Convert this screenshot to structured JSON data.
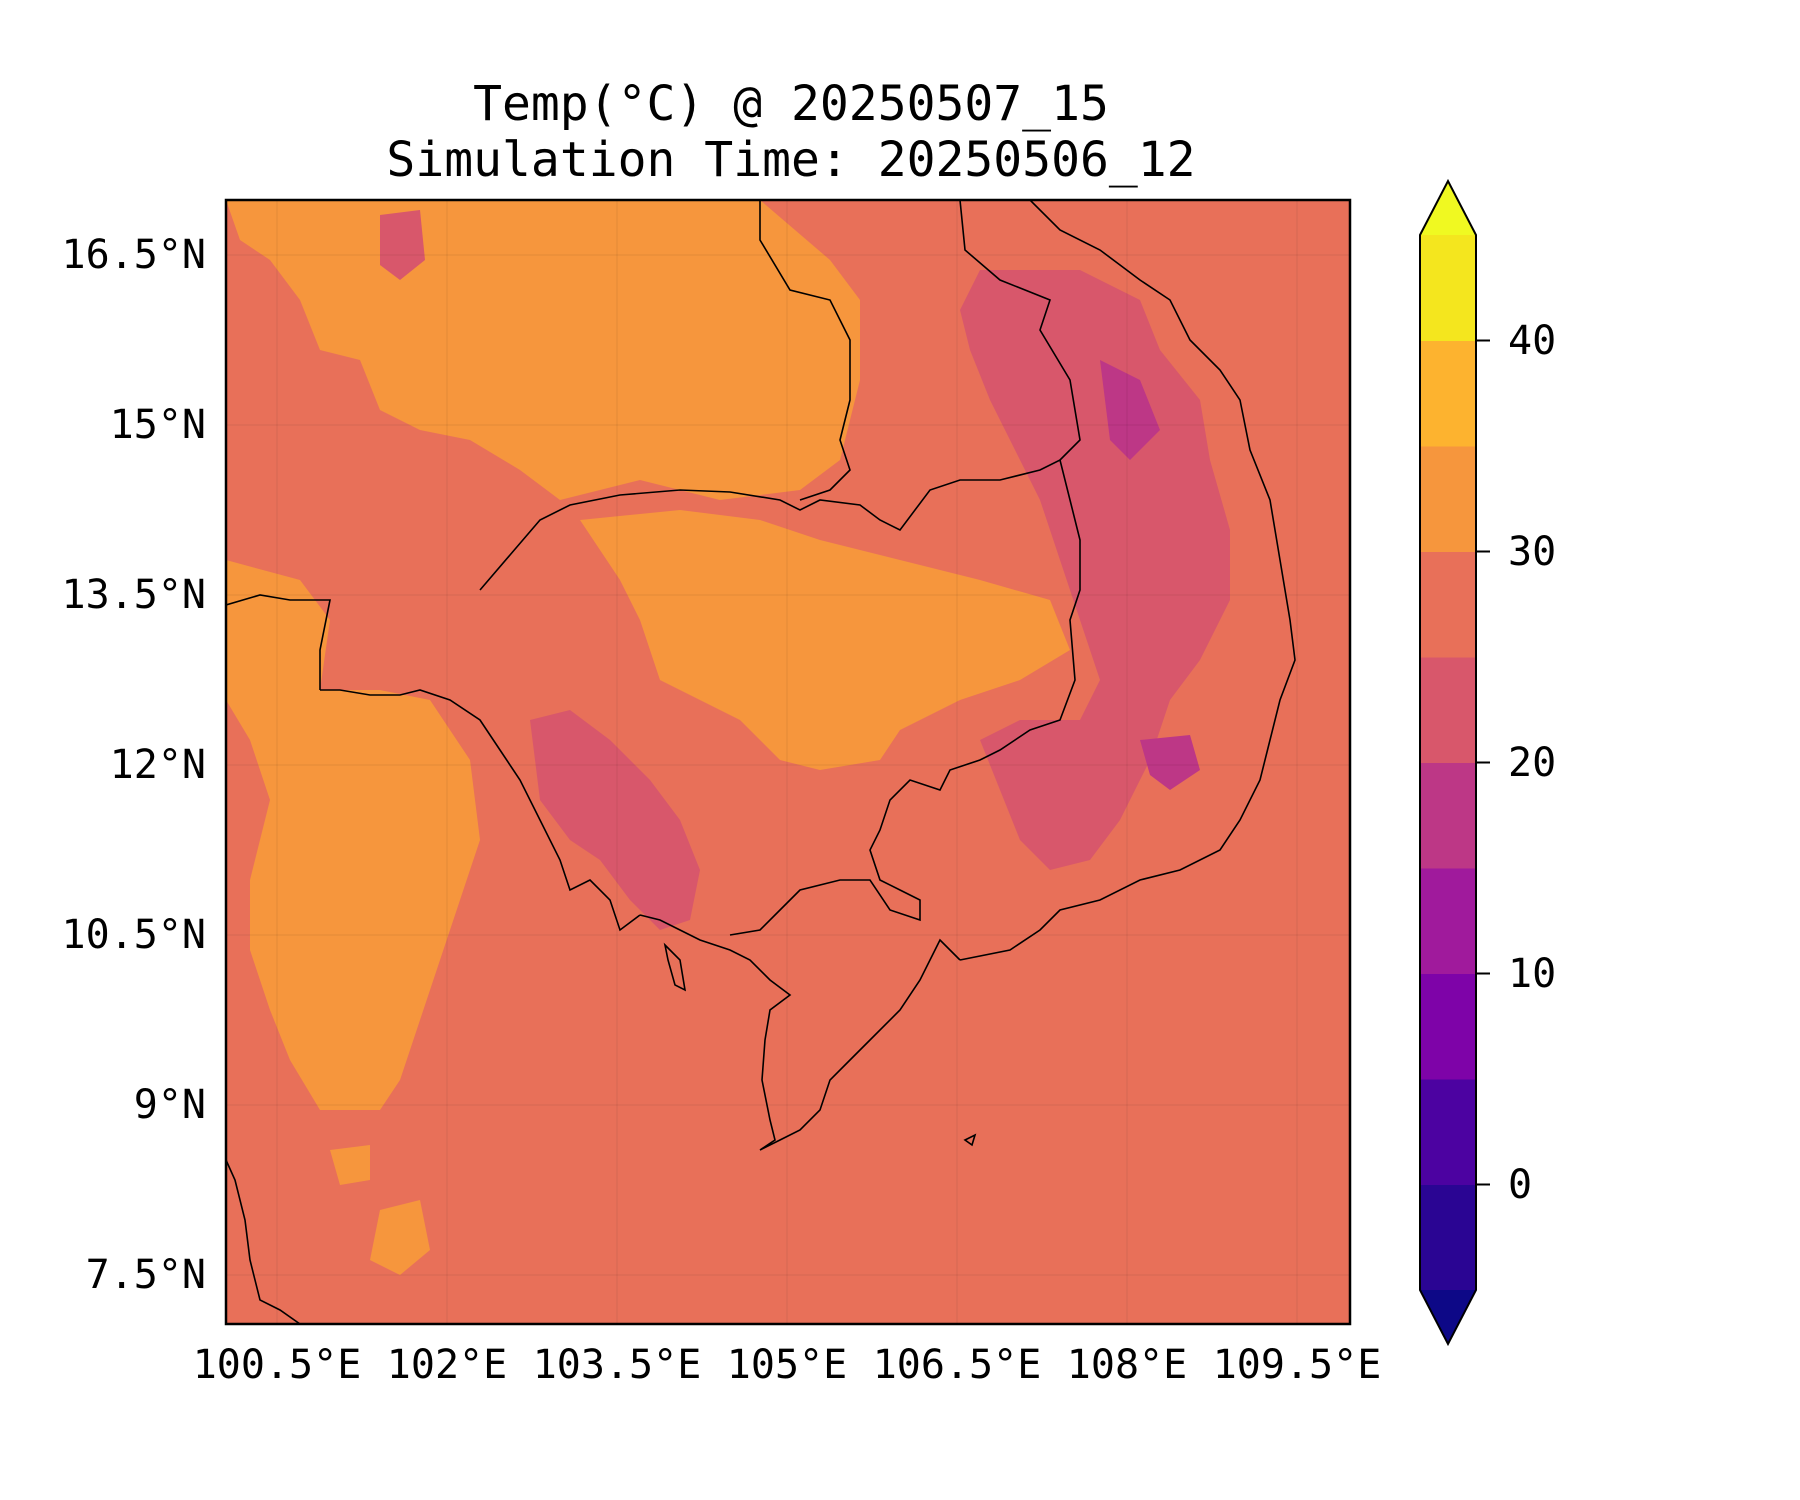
{
  "title": "Temp(°C) @ 20250507_15",
  "subtitle": "Simulation Time: 20250506_12",
  "map": {
    "lon_ticks": [
      "100.5°E",
      "102°E",
      "103.5°E",
      "105°E",
      "106.5°E",
      "108°E",
      "109.5°E"
    ],
    "lat_ticks": [
      "16.5°N",
      "15°N",
      "13.5°N",
      "12°N",
      "10.5°N",
      "9°N",
      "7.5°N"
    ],
    "lon_range": [
      100.5,
      110.4
    ],
    "lat_range": [
      7.0,
      16.9
    ]
  },
  "colorbar": {
    "ticks": [
      "40",
      "30",
      "20",
      "10",
      "0"
    ],
    "levels": [
      -5,
      0,
      5,
      10,
      15,
      20,
      25,
      30,
      35,
      40,
      45
    ],
    "extend": "both",
    "colors": [
      "#0d0887",
      "#2a0593",
      "#4c02a1",
      "#7e03a8",
      "#a01a9c",
      "#bd3786",
      "#d8576b",
      "#e87059",
      "#f6963d",
      "#fdb32f",
      "#f4e61e",
      "#f0f921"
    ]
  },
  "fill_colors": {
    "base": "#e87059",
    "warm": "#f6963d",
    "cool": "#d8576b",
    "cooler": "#bd3786"
  }
}
